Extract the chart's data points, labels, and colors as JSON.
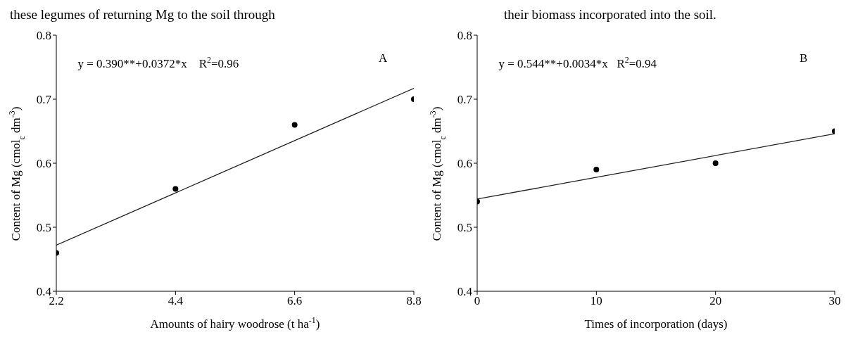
{
  "chart_data": [
    {
      "type": "scatter",
      "xlabel": "Amounts of hairy woodrose (t ha$^{-1}$)",
      "ylabel": "Content of Mg (cmol$_{c}$ dm$^{-3}$)",
      "xlim": [
        2.2,
        8.8
      ],
      "xticks": [
        2.2,
        4.4,
        6.6,
        8.8
      ],
      "ylim": [
        0.4,
        0.8
      ],
      "yticks": [
        0.4,
        0.5,
        0.6,
        0.7,
        0.8
      ],
      "line_style": "solid",
      "annotations": [
        "these legumes of returning Mg to the soil through",
        "y = 0.390**+0.0372*x    R$^{2}$=0.96",
        "A"
      ],
      "series": [
        {
          "marker": "circle",
          "color": "#000000",
          "x": [
            2.2,
            4.4,
            6.6,
            8.8
          ],
          "values": [
            0.46,
            0.56,
            0.66,
            0.7
          ]
        },
        {
          "type": "line",
          "marker": "none",
          "color": "#222222",
          "x": [
            2.2,
            8.8
          ],
          "values": [
            0.472,
            0.717
          ]
        }
      ]
    },
    {
      "type": "scatter",
      "xlabel": "Times of incorporation  (days)",
      "ylabel": "Content of Mg (cmol$_{c}$ dm$^{-3}$)",
      "xlim": [
        0,
        30
      ],
      "xticks": [
        0,
        10,
        20,
        30
      ],
      "ylim": [
        0.4,
        0.8
      ],
      "yticks": [
        0.4,
        0.5,
        0.6,
        0.7,
        0.8
      ],
      "line_style": "solid",
      "annotations": [
        "their biomass incorporated into the soil.",
        "y = 0.544**+0.0034*x   R$^{2}$=0.94",
        "B"
      ],
      "series": [
        {
          "marker": "circle",
          "color": "#000000",
          "x": [
            0,
            10,
            20,
            30
          ],
          "values": [
            0.54,
            0.59,
            0.6,
            0.65
          ]
        },
        {
          "type": "line",
          "marker": "none",
          "color": "#222222",
          "x": [
            0,
            30
          ],
          "values": [
            0.544,
            0.646
          ]
        }
      ]
    }
  ]
}
